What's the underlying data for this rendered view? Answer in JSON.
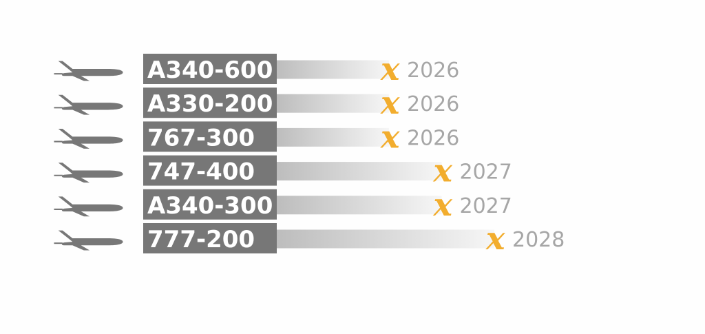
{
  "chart_data": {
    "type": "bar",
    "categories": [
      "A340-600",
      "A330-200",
      "767-300",
      "747-400",
      "A340-300",
      "777-200"
    ],
    "values": [
      2026,
      2026,
      2026,
      2027,
      2027,
      2028
    ],
    "value_labels": [
      "2026",
      "2026",
      "2026",
      "2027",
      "2027",
      "2028"
    ],
    "marker": "x",
    "icon": "airplane-icon",
    "xlim": [
      2024,
      2028
    ],
    "colors": {
      "label_box": "#777777",
      "label_text": "#ffffff",
      "bar_start": "#bdbdbd",
      "bar_end": "#f6f6f6",
      "marker": "#f2ad2e",
      "value_text": "#a6a6a6",
      "icon": "#777777"
    }
  }
}
